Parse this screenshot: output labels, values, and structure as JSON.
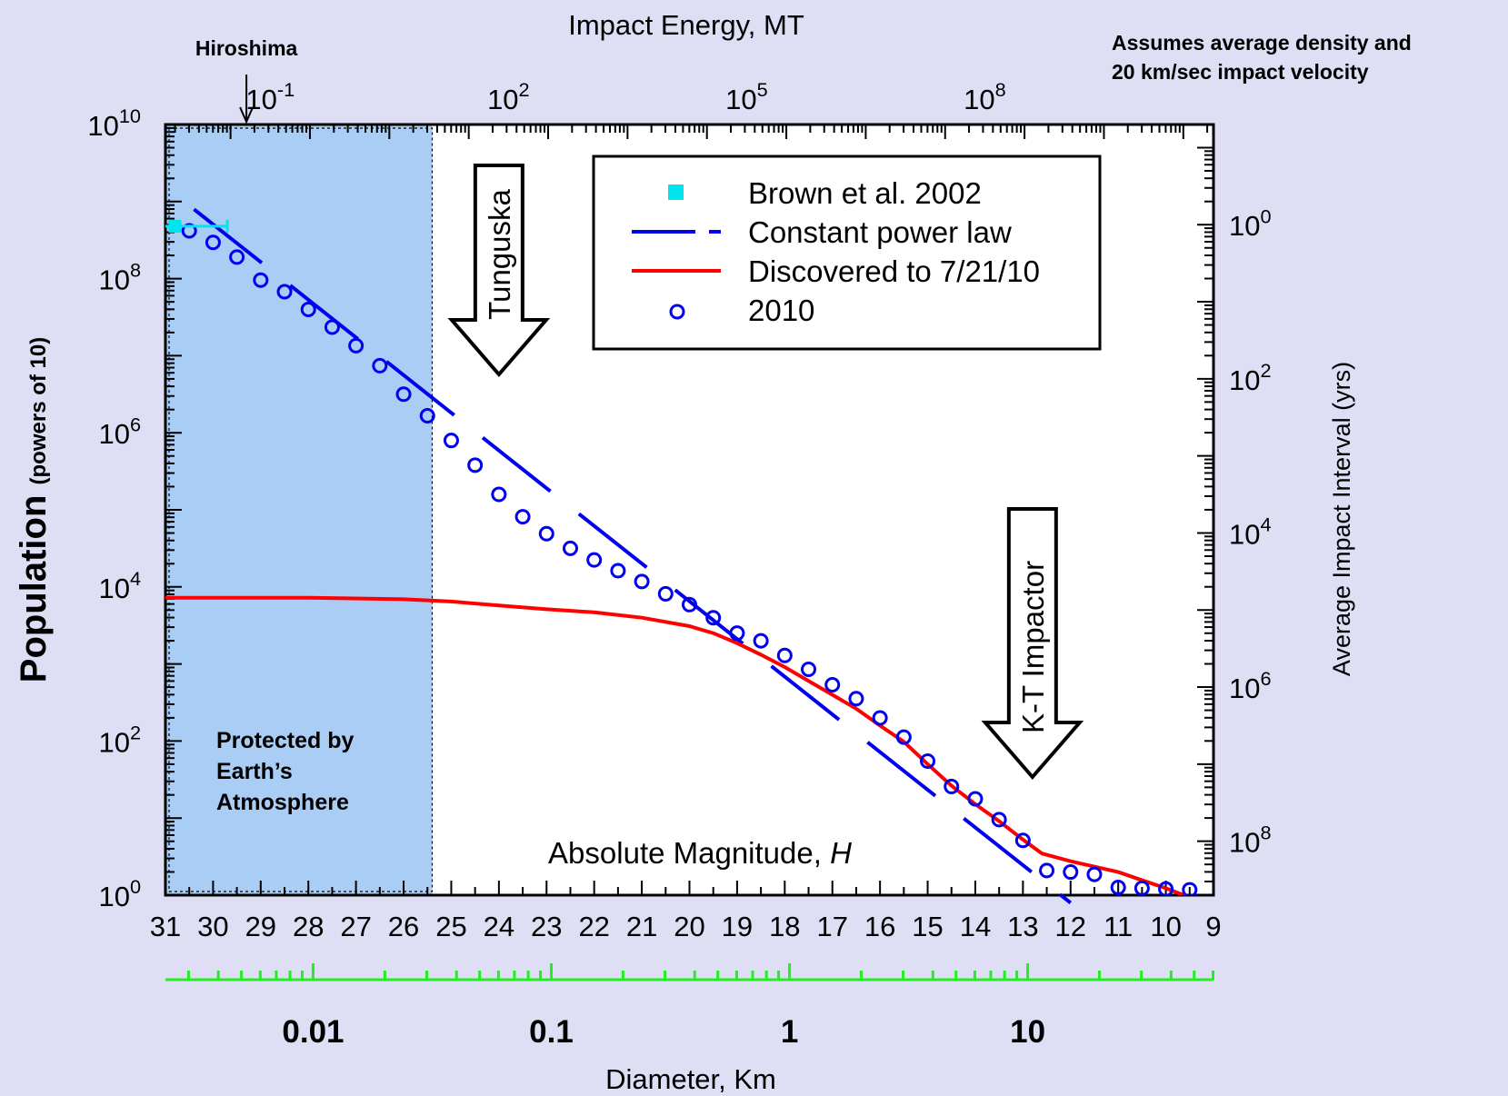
{
  "chart_data": {
    "type": "scatter",
    "title": "",
    "xlabel_bottom": "Absolute Magnitude, ",
    "xlabel_bottom_italic": "H",
    "xlabel_top": "Impact Energy, MT",
    "ylabel_left": "Population",
    "ylabel_left_small": "(powers of 10)",
    "ylabel_right": "Average Impact Interval (yrs)",
    "diameter_label": "Diameter, Km",
    "x_axis": {
      "range_H": [
        31,
        9
      ],
      "reversed": true,
      "ticks": [
        "31",
        "30",
        "29",
        "28",
        "27",
        "26",
        "25",
        "24",
        "23",
        "22",
        "21",
        "20",
        "19",
        "18",
        "17",
        "16",
        "15",
        "14",
        "13",
        "12",
        "11",
        "10",
        "9"
      ]
    },
    "y_axis": {
      "scale": "log",
      "range_log10": [
        0,
        10
      ],
      "ticks": [
        {
          "base": "10",
          "exp": "0"
        },
        {
          "base": "10",
          "exp": "2"
        },
        {
          "base": "10",
          "exp": "4"
        },
        {
          "base": "10",
          "exp": "6"
        },
        {
          "base": "10",
          "exp": "8"
        },
        {
          "base": "10",
          "exp": "10"
        }
      ]
    },
    "top_axis": {
      "scale": "log",
      "ticks": [
        {
          "base": "10",
          "exp": "-1",
          "H": 28.8
        },
        {
          "base": "10",
          "exp": "2",
          "H": 23.8
        },
        {
          "base": "10",
          "exp": "5",
          "H": 18.8
        },
        {
          "base": "10",
          "exp": "8",
          "H": 13.8
        }
      ]
    },
    "right_axis": {
      "scale": "log",
      "ticks": [
        {
          "base": "10",
          "exp": "0",
          "log_pop": 8.7
        },
        {
          "base": "10",
          "exp": "2",
          "log_pop": 6.7
        },
        {
          "base": "10",
          "exp": "4",
          "log_pop": 4.7
        },
        {
          "base": "10",
          "exp": "6",
          "log_pop": 2.7
        },
        {
          "base": "10",
          "exp": "8",
          "log_pop": 0.7
        }
      ]
    },
    "diameter_axis": {
      "labels": [
        {
          "text": "0.01",
          "H": 27.9
        },
        {
          "text": "0.1",
          "H": 22.9
        },
        {
          "text": "1",
          "H": 17.9
        },
        {
          "text": "10",
          "H": 12.9
        }
      ]
    },
    "legend": {
      "position": "top-center",
      "entries": [
        "Brown et al. 2002",
        "Constant power law",
        "Discovered to 7/21/10",
        "2010"
      ]
    },
    "series": [
      {
        "name": "Brown et al. 2002",
        "color": "#00e5ee",
        "points": [
          {
            "H": 30.8,
            "log_pop": 8.68
          }
        ],
        "h_error": [
          31.0,
          29.7
        ]
      },
      {
        "name": "Constant power law",
        "color": "#0000ee",
        "line": [
          {
            "H": 30.4,
            "log_pop": 8.9
          },
          {
            "H": 12.0,
            "log_pop": -0.1
          }
        ]
      },
      {
        "name": "Discovered to 7/21/10",
        "color": "#ff0000",
        "line": [
          {
            "H": 31.0,
            "log_pop": 3.86
          },
          {
            "H": 28.0,
            "log_pop": 3.86
          },
          {
            "H": 26.0,
            "log_pop": 3.84
          },
          {
            "H": 25.0,
            "log_pop": 3.81
          },
          {
            "H": 24.0,
            "log_pop": 3.76
          },
          {
            "H": 23.0,
            "log_pop": 3.71
          },
          {
            "H": 22.0,
            "log_pop": 3.67
          },
          {
            "H": 21.0,
            "log_pop": 3.6
          },
          {
            "H": 20.0,
            "log_pop": 3.49
          },
          {
            "H": 19.5,
            "log_pop": 3.4
          },
          {
            "H": 19.0,
            "log_pop": 3.27
          },
          {
            "H": 18.5,
            "log_pop": 3.12
          },
          {
            "H": 18.0,
            "log_pop": 2.96
          },
          {
            "H": 17.5,
            "log_pop": 2.78
          },
          {
            "H": 17.0,
            "log_pop": 2.6
          },
          {
            "H": 16.5,
            "log_pop": 2.42
          },
          {
            "H": 16.0,
            "log_pop": 2.2
          },
          {
            "H": 15.5,
            "log_pop": 1.99
          },
          {
            "H": 15.0,
            "log_pop": 1.7
          },
          {
            "H": 14.5,
            "log_pop": 1.42
          },
          {
            "H": 14.0,
            "log_pop": 1.18
          },
          {
            "H": 13.5,
            "log_pop": 0.96
          },
          {
            "H": 13.0,
            "log_pop": 0.72
          },
          {
            "H": 12.6,
            "log_pop": 0.54
          },
          {
            "H": 12.0,
            "log_pop": 0.44
          },
          {
            "H": 11.0,
            "log_pop": 0.3
          },
          {
            "H": 10.0,
            "log_pop": 0.09
          },
          {
            "H": 9.5,
            "log_pop": -0.03
          }
        ]
      },
      {
        "name": "2010",
        "color": "#0000ee",
        "points": [
          {
            "H": 30.5,
            "log_pop": 8.62
          },
          {
            "H": 30.0,
            "log_pop": 8.47
          },
          {
            "H": 29.5,
            "log_pop": 8.28
          },
          {
            "H": 29.0,
            "log_pop": 7.98
          },
          {
            "H": 28.5,
            "log_pop": 7.83
          },
          {
            "H": 28.0,
            "log_pop": 7.6
          },
          {
            "H": 27.5,
            "log_pop": 7.37
          },
          {
            "H": 27.0,
            "log_pop": 7.13
          },
          {
            "H": 26.5,
            "log_pop": 6.87
          },
          {
            "H": 26.0,
            "log_pop": 6.5
          },
          {
            "H": 25.5,
            "log_pop": 6.22
          },
          {
            "H": 25.0,
            "log_pop": 5.9
          },
          {
            "H": 24.5,
            "log_pop": 5.58
          },
          {
            "H": 24.0,
            "log_pop": 5.2
          },
          {
            "H": 23.5,
            "log_pop": 4.91
          },
          {
            "H": 23.0,
            "log_pop": 4.69
          },
          {
            "H": 22.5,
            "log_pop": 4.5
          },
          {
            "H": 22.0,
            "log_pop": 4.35
          },
          {
            "H": 21.5,
            "log_pop": 4.21
          },
          {
            "H": 21.0,
            "log_pop": 4.07
          },
          {
            "H": 20.5,
            "log_pop": 3.91
          },
          {
            "H": 20.0,
            "log_pop": 3.77
          },
          {
            "H": 19.5,
            "log_pop": 3.6
          },
          {
            "H": 19.0,
            "log_pop": 3.4
          },
          {
            "H": 18.5,
            "log_pop": 3.3
          },
          {
            "H": 18.0,
            "log_pop": 3.11
          },
          {
            "H": 17.5,
            "log_pop": 2.93
          },
          {
            "H": 17.0,
            "log_pop": 2.73
          },
          {
            "H": 16.5,
            "log_pop": 2.55
          },
          {
            "H": 16.0,
            "log_pop": 2.3
          },
          {
            "H": 15.5,
            "log_pop": 2.05
          },
          {
            "H": 15.0,
            "log_pop": 1.74
          },
          {
            "H": 14.5,
            "log_pop": 1.41
          },
          {
            "H": 14.0,
            "log_pop": 1.25
          },
          {
            "H": 13.5,
            "log_pop": 0.98
          },
          {
            "H": 13.0,
            "log_pop": 0.71
          },
          {
            "H": 12.5,
            "log_pop": 0.32
          },
          {
            "H": 12.0,
            "log_pop": 0.3
          },
          {
            "H": 11.5,
            "log_pop": 0.27
          },
          {
            "H": 11.0,
            "log_pop": 0.1
          },
          {
            "H": 10.5,
            "log_pop": 0.09
          },
          {
            "H": 10.0,
            "log_pop": 0.08
          },
          {
            "H": 9.5,
            "log_pop": 0.07
          }
        ]
      }
    ],
    "shaded_region": {
      "H_range": [
        31,
        25.4
      ],
      "color": "#a9cdf5",
      "label_lines": [
        "Protected by",
        "Earth’s",
        "Atmosphere"
      ]
    },
    "annotations": {
      "hiroshima": "Hiroshima",
      "hiroshima_H": 29.3,
      "assumption_lines": [
        "Assumes average density and",
        "20 km/sec impact velocity"
      ],
      "tunguska": "Tunguska",
      "tunguska_H": 24.0,
      "kt": "K-T Impactor",
      "kt_H": 12.8
    },
    "grid": false
  }
}
